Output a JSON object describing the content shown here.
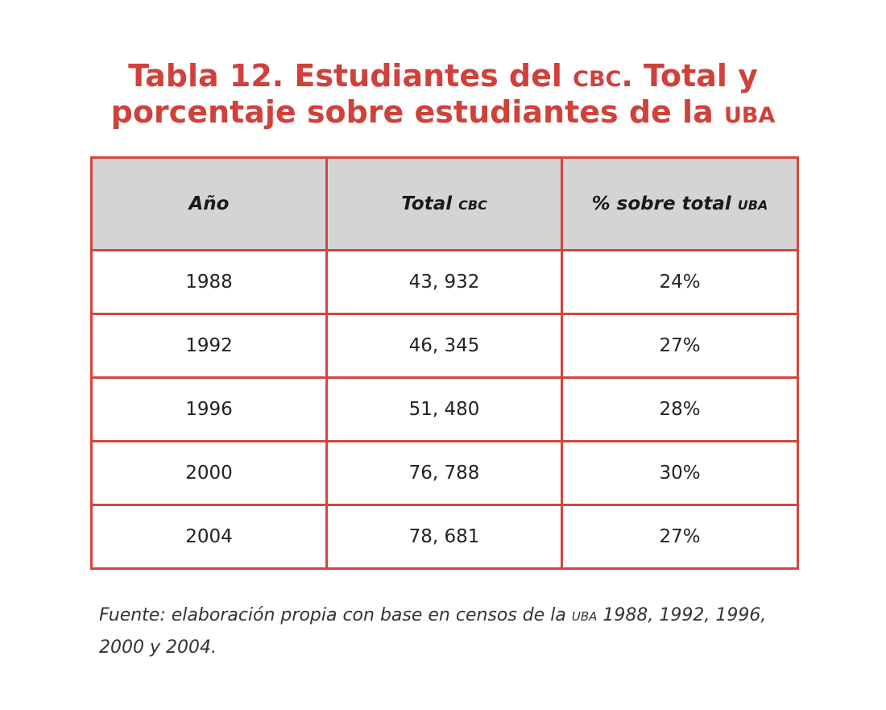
{
  "title": {
    "line1_prefix": "Tabla 12. Estudiantes del ",
    "line1_abbr": "cbc",
    "line1_suffix": ". Total y",
    "line2_prefix": "porcentaje sobre estudiantes de la ",
    "line2_abbr": "uba"
  },
  "table": {
    "headers": {
      "col1": "Año",
      "col2_prefix": "Total ",
      "col2_abbr": "cbc",
      "col3_prefix": "% sobre total ",
      "col3_abbr": "uba"
    },
    "rows": [
      {
        "year": "1988",
        "total": "43, 932",
        "pct": "24%"
      },
      {
        "year": "1992",
        "total": "46, 345",
        "pct": "27%"
      },
      {
        "year": "1996",
        "total": "51, 480",
        "pct": "28%"
      },
      {
        "year": "2000",
        "total": "76, 788",
        "pct": "30%"
      },
      {
        "year": "2004",
        "total": "78, 681",
        "pct": "27%"
      }
    ]
  },
  "source": {
    "prefix": "Fuente: elaboración propia con base en censos de la ",
    "abbr": "uba",
    "suffix": " 1988, 1992, 1996, 2000 y 2004."
  },
  "colors": {
    "accent": "#d0413a",
    "border": "#d5453c",
    "header_bg": "#d4d4d6"
  }
}
